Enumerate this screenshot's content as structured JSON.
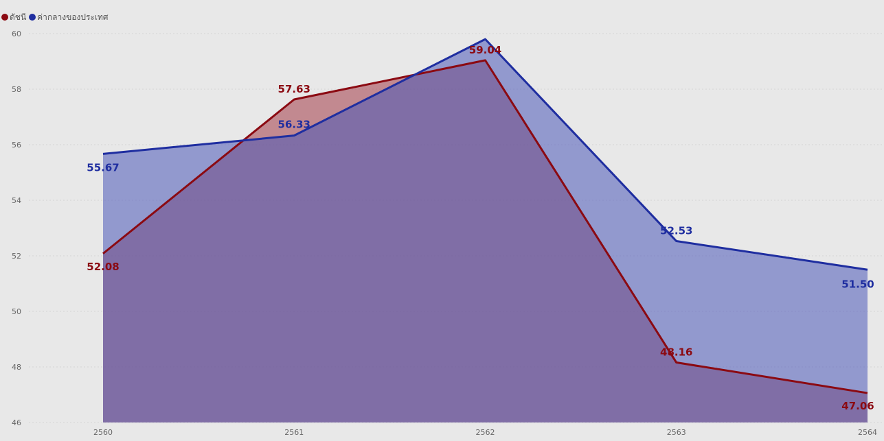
{
  "chart_data": {
    "type": "area",
    "categories": [
      "2560",
      "2561",
      "2562",
      "2563",
      "2564"
    ],
    "series": [
      {
        "name": "ดัชนี",
        "color": "#8b0a12",
        "fill": "#a23a47",
        "values": [
          52.08,
          57.63,
          59.04,
          48.16,
          47.06
        ],
        "labels": [
          "52.08",
          "57.63",
          "59.04",
          "48.16",
          "47.06"
        ]
      },
      {
        "name": "ค่ากลางของประเทศ",
        "color": "#1f2ea0",
        "fill": "#4a58b8",
        "values": [
          55.67,
          56.33,
          59.8,
          52.53,
          51.5
        ],
        "labels": [
          "55.67",
          "56.33",
          "",
          "52.53",
          "51.50"
        ]
      }
    ],
    "ylim": [
      46,
      60
    ],
    "yticks": [
      "46",
      "48",
      "50",
      "52",
      "54",
      "56",
      "58",
      "60"
    ],
    "grid": true,
    "legend_position": "top-left"
  }
}
